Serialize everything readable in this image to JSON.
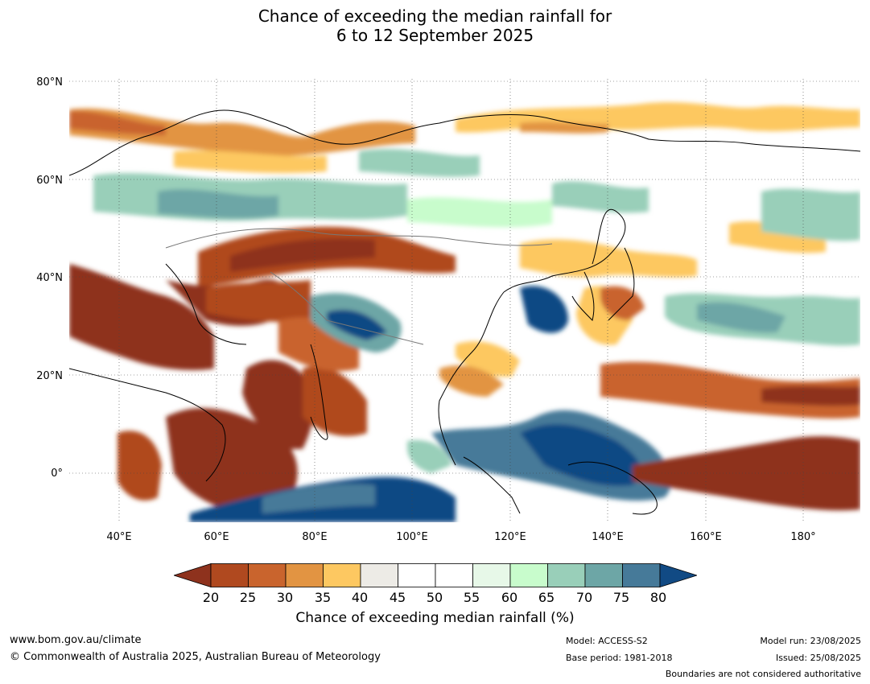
{
  "title_line1": "Chance of exceeding the median rainfall for",
  "title_line2": "6 to 12 September 2025",
  "lat_labels": [
    "80°N",
    "60°N",
    "40°N",
    "20°N",
    "0°"
  ],
  "lon_labels": [
    "40°E",
    "60°E",
    "80°E",
    "100°E",
    "120°E",
    "140°E",
    "160°E",
    "180°"
  ],
  "colorbar": {
    "ticks": [
      "20",
      "25",
      "30",
      "35",
      "40",
      "45",
      "50",
      "55",
      "60",
      "65",
      "70",
      "75",
      "80"
    ],
    "colors": [
      "#8e321d",
      "#b0491f",
      "#c9642d",
      "#e29442",
      "#fdc861",
      "#edebe6",
      "#ffffff",
      "#ffffff",
      "#e7f8e8",
      "#c8fccc",
      "#99cfb9",
      "#6da6a6",
      "#467a99",
      "#114a84"
    ],
    "label": "Chance of exceeding median rainfall (%)"
  },
  "footer": {
    "url": "www.bom.gov.au/climate",
    "copyright": "© Commonwealth of Australia 2025, Australian Bureau of Meteorology",
    "model": "Model: ACCESS-S2",
    "base_period": "Base period: 1981-2018",
    "model_run": "Model run: 23/08/2025",
    "issued": "Issued: 25/08/2025",
    "disclaimer": "Boundaries are not considered authoritative"
  }
}
